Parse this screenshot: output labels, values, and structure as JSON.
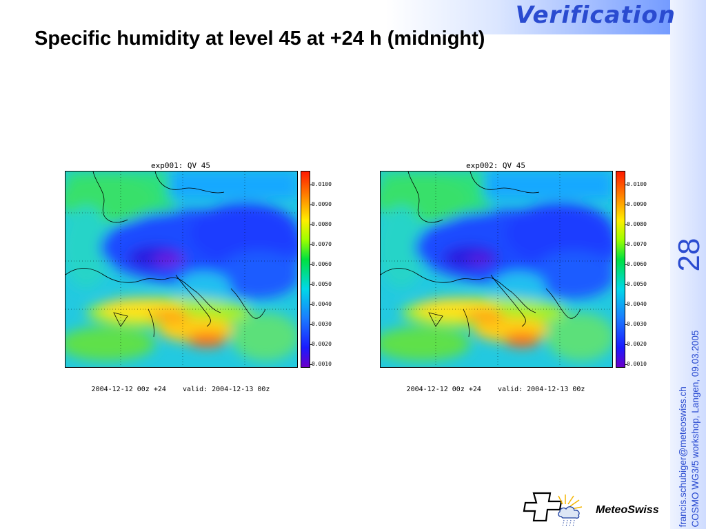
{
  "header": {
    "section_title": "Verification",
    "title": "Specific humidity at level 45 at +24 h (midnight)"
  },
  "slide_number": "28",
  "footer": {
    "line1": "francis.schubiger@meteoswiss.ch",
    "line2": "COSMO WG3/5 workshop, Langen, 09.03.2005"
  },
  "colorbar": {
    "ticks": [
      "0.0100",
      "0.0090",
      "0.0080",
      "0.0070",
      "0.0060",
      "0.0050",
      "0.0040",
      "0.0030",
      "0.0020",
      "0.0010"
    ]
  },
  "panels": [
    {
      "title": "exp001: QV 45",
      "caption": "2004-12-12 00z +24    valid: 2004-12-13 00z"
    },
    {
      "title": "exp002: QV 45",
      "caption": "2004-12-12 00z +24    valid: 2004-12-13 00z"
    }
  ],
  "logo": {
    "text": "MeteoSwiss"
  },
  "colors": {
    "accent": "#2a4bd0"
  }
}
